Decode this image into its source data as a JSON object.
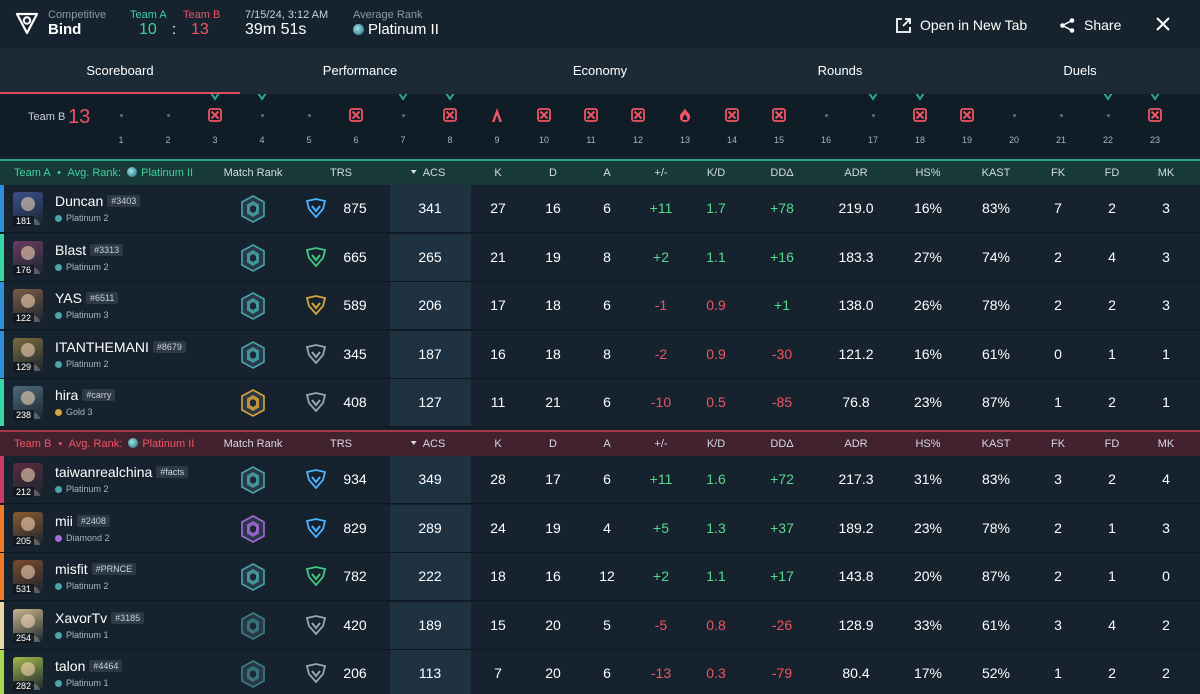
{
  "header": {
    "mode_label": "Competitive",
    "map": "Bind",
    "team_a_label": "Team A",
    "team_b_label": "Team B",
    "team_a_score": "10",
    "separator": ":",
    "team_b_score": "13",
    "date": "7/15/24, 3:12 AM",
    "duration": "39m 51s",
    "avg_rank_label": "Average Rank",
    "avg_rank": "Platinum II",
    "open_new_tab": "Open in New Tab",
    "share": "Share"
  },
  "tabs": [
    "Scoreboard",
    "Performance",
    "Economy",
    "Rounds",
    "Duels"
  ],
  "active_tab": "Scoreboard",
  "timeline": {
    "team_label": "Team B",
    "score": "13",
    "rounds": [
      {
        "n": "1",
        "icon": "none"
      },
      {
        "n": "2",
        "icon": "none"
      },
      {
        "n": "3",
        "icon": "elim"
      },
      {
        "n": "4",
        "icon": "none"
      },
      {
        "n": "5",
        "icon": "none"
      },
      {
        "n": "6",
        "icon": "elim"
      },
      {
        "n": "7",
        "icon": "none"
      },
      {
        "n": "8",
        "icon": "elim"
      },
      {
        "n": "9",
        "icon": "defuse"
      },
      {
        "n": "10",
        "icon": "elim"
      },
      {
        "n": "11",
        "icon": "elim"
      },
      {
        "n": "12",
        "icon": "elim"
      },
      {
        "n": "13",
        "icon": "detonate"
      },
      {
        "n": "14",
        "icon": "elim"
      },
      {
        "n": "15",
        "icon": "elim"
      },
      {
        "n": "16",
        "icon": "none"
      },
      {
        "n": "17",
        "icon": "none"
      },
      {
        "n": "18",
        "icon": "elim"
      },
      {
        "n": "19",
        "icon": "elim"
      },
      {
        "n": "20",
        "icon": "none"
      },
      {
        "n": "21",
        "icon": "none"
      },
      {
        "n": "22",
        "icon": "none"
      },
      {
        "n": "23",
        "icon": "elim"
      }
    ]
  },
  "columns": {
    "match_rank": "Match Rank",
    "trs": "TRS",
    "acs": "ACS",
    "k": "K",
    "d": "D",
    "a": "A",
    "pm": "+/-",
    "kd": "K/D",
    "dd": "DDΔ",
    "adr": "ADR",
    "hs": "HS%",
    "kast": "KAST",
    "fk": "FK",
    "fd": "FD",
    "mk": "MK"
  },
  "team_a": {
    "label": "Team A",
    "bullet": "•",
    "avg_rank_label": "Avg. Rank:",
    "avg_rank": "Platinum II",
    "players": [
      {
        "name": "Duncan",
        "tag": "#3403",
        "rank": "Platinum 2",
        "level": "181",
        "trs": "875",
        "acs": "341",
        "k": "27",
        "d": "16",
        "a": "6",
        "pm": "+11",
        "kd": "1.7",
        "dd": "+78",
        "adr": "219.0",
        "hs": "16%",
        "kast": "83%",
        "fk": "7",
        "fd": "2",
        "mk": "3",
        "bar": "#2f8fd8",
        "trs_color": "#4db3ff",
        "match_rank_color": "#47a6ad",
        "rank_dot": "#47a6ad",
        "avatar": "#3b4f8a"
      },
      {
        "name": "Blast",
        "tag": "#3313",
        "rank": "Platinum 2",
        "level": "176",
        "trs": "665",
        "acs": "265",
        "k": "21",
        "d": "19",
        "a": "8",
        "pm": "+2",
        "kd": "1.1",
        "dd": "+16",
        "adr": "183.3",
        "hs": "27%",
        "kast": "74%",
        "fk": "2",
        "fd": "4",
        "mk": "3",
        "bar": "#36d9a6",
        "trs_color": "#45c882",
        "match_rank_color": "#47a6ad",
        "rank_dot": "#47a6ad",
        "avatar": "#6b3c5e"
      },
      {
        "name": "YAS",
        "tag": "#6511",
        "rank": "Platinum 3",
        "level": "122",
        "trs": "589",
        "acs": "206",
        "k": "17",
        "d": "18",
        "a": "6",
        "pm": "-1",
        "kd": "0.9",
        "dd": "+1",
        "adr": "138.0",
        "hs": "26%",
        "kast": "78%",
        "fk": "2",
        "fd": "2",
        "mk": "3",
        "bar": "#2f8fd8",
        "trs_color": "#d2a63a",
        "match_rank_color": "#47a6ad",
        "rank_dot": "#47a6ad",
        "avatar": "#7a5a44"
      },
      {
        "name": "ITANTHEMANI",
        "tag": "#8679",
        "rank": "Platinum 2",
        "level": "129",
        "trs": "345",
        "acs": "187",
        "k": "16",
        "d": "18",
        "a": "8",
        "pm": "-2",
        "kd": "0.9",
        "dd": "-30",
        "adr": "121.2",
        "hs": "16%",
        "kast": "61%",
        "fk": "0",
        "fd": "1",
        "mk": "1",
        "bar": "#2f8fd8",
        "trs_color": "#9aa6b1",
        "match_rank_color": "#47a6ad",
        "rank_dot": "#47a6ad",
        "avatar": "#7d6a3c"
      },
      {
        "name": "hira",
        "tag": "#carry",
        "rank": "Gold 3",
        "level": "238",
        "trs": "408",
        "acs": "127",
        "k": "11",
        "d": "21",
        "a": "6",
        "pm": "-10",
        "kd": "0.5",
        "dd": "-85",
        "adr": "76.8",
        "hs": "23%",
        "kast": "87%",
        "fk": "1",
        "fd": "2",
        "mk": "1",
        "bar": "#36d9a6",
        "trs_color": "#9aa6b1",
        "match_rank_color": "#d9a43a",
        "rank_dot": "#d9a43a",
        "avatar": "#4f6a78"
      }
    ]
  },
  "team_b": {
    "label": "Team B",
    "bullet": "•",
    "avg_rank_label": "Avg. Rank:",
    "avg_rank": "Platinum II",
    "players": [
      {
        "name": "taiwanrealchina",
        "tag": "#facts",
        "rank": "Platinum 2",
        "level": "212",
        "trs": "934",
        "acs": "349",
        "k": "28",
        "d": "17",
        "a": "6",
        "pm": "+11",
        "kd": "1.6",
        "dd": "+72",
        "adr": "217.3",
        "hs": "31%",
        "kast": "83%",
        "fk": "3",
        "fd": "2",
        "mk": "4",
        "bar": "#c73a6a",
        "trs_color": "#4db3ff",
        "match_rank_color": "#47a6ad",
        "rank_dot": "#47a6ad",
        "avatar": "#5a2b3e"
      },
      {
        "name": "mii",
        "tag": "#2408",
        "rank": "Diamond 2",
        "level": "205",
        "trs": "829",
        "acs": "289",
        "k": "24",
        "d": "19",
        "a": "4",
        "pm": "+5",
        "kd": "1.3",
        "dd": "+37",
        "adr": "189.2",
        "hs": "23%",
        "kast": "78%",
        "fk": "2",
        "fd": "1",
        "mk": "3",
        "bar": "#f07a2a",
        "trs_color": "#4db3ff",
        "match_rank_color": "#a56be0",
        "rank_dot": "#a56be0",
        "avatar": "#8a5a30"
      },
      {
        "name": "misfit",
        "tag": "#PRNCE",
        "rank": "Platinum 2",
        "level": "531",
        "trs": "782",
        "acs": "222",
        "k": "18",
        "d": "16",
        "a": "12",
        "pm": "+2",
        "kd": "1.1",
        "dd": "+17",
        "adr": "143.8",
        "hs": "20%",
        "kast": "87%",
        "fk": "2",
        "fd": "1",
        "mk": "0",
        "bar": "#f07a2a",
        "trs_color": "#45c882",
        "match_rank_color": "#47a6ad",
        "rank_dot": "#47a6ad",
        "avatar": "#7a4a2a"
      },
      {
        "name": "XavorTv",
        "tag": "#3185",
        "rank": "Platinum 1",
        "level": "254",
        "trs": "420",
        "acs": "189",
        "k": "15",
        "d": "20",
        "a": "5",
        "pm": "-5",
        "kd": "0.8",
        "dd": "-26",
        "adr": "128.9",
        "hs": "33%",
        "kast": "61%",
        "fk": "3",
        "fd": "4",
        "mk": "2",
        "bar": "#e8d6a6",
        "trs_color": "#9aa6b1",
        "match_rank_color": "#3a7e86",
        "rank_dot": "#47a6ad",
        "avatar": "#c9b48a"
      },
      {
        "name": "talon",
        "tag": "#4464",
        "rank": "Platinum 1",
        "level": "282",
        "trs": "206",
        "acs": "113",
        "k": "7",
        "d": "20",
        "a": "6",
        "pm": "-13",
        "kd": "0.3",
        "dd": "-79",
        "adr": "80.4",
        "hs": "17%",
        "kast": "52%",
        "fk": "1",
        "fd": "2",
        "mk": "2",
        "bar": "#a6d94d",
        "trs_color": "#9aa6b1",
        "match_rank_color": "#3a7e86",
        "rank_dot": "#47a6ad",
        "avatar": "#a4b74e"
      }
    ]
  }
}
